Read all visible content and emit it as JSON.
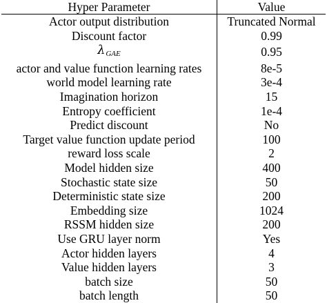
{
  "table": {
    "headers": {
      "parameter": "Hyper Parameter",
      "value": "Value"
    },
    "rows": [
      {
        "parameter": "Actor output distribution",
        "value": "Truncated Normal"
      },
      {
        "parameter": "Discount factor",
        "value": "0.99"
      },
      {
        "parameter_symbol": "λ",
        "parameter_subscript": "GAE",
        "value": "0.95"
      },
      {
        "parameter": "actor and value function learning rates",
        "value": "8e-5"
      },
      {
        "parameter": "world model learning rate",
        "value": "3e-4"
      },
      {
        "parameter": "Imagination horizon",
        "value": "15"
      },
      {
        "parameter": "Entropy coefficient",
        "value": "1e-4"
      },
      {
        "parameter": "Predict discount",
        "value": "No"
      },
      {
        "parameter": "Target value function update period",
        "value": "100"
      },
      {
        "parameter": "reward loss scale",
        "value": "2"
      },
      {
        "parameter": "Model hidden size",
        "value": "400"
      },
      {
        "parameter": "Stochastic state size",
        "value": "50"
      },
      {
        "parameter": "Deterministic state size",
        "value": "200"
      },
      {
        "parameter": "Embedding size",
        "value": "1024"
      },
      {
        "parameter": "RSSM hidden size",
        "value": "200"
      },
      {
        "parameter": "Use GRU layer norm",
        "value": "Yes"
      },
      {
        "parameter": "Actor hidden layers",
        "value": "4"
      },
      {
        "parameter": "Value hidden layers",
        "value": "3"
      },
      {
        "parameter": "batch size",
        "value": "50"
      },
      {
        "parameter": "batch length",
        "value": "50"
      }
    ]
  }
}
